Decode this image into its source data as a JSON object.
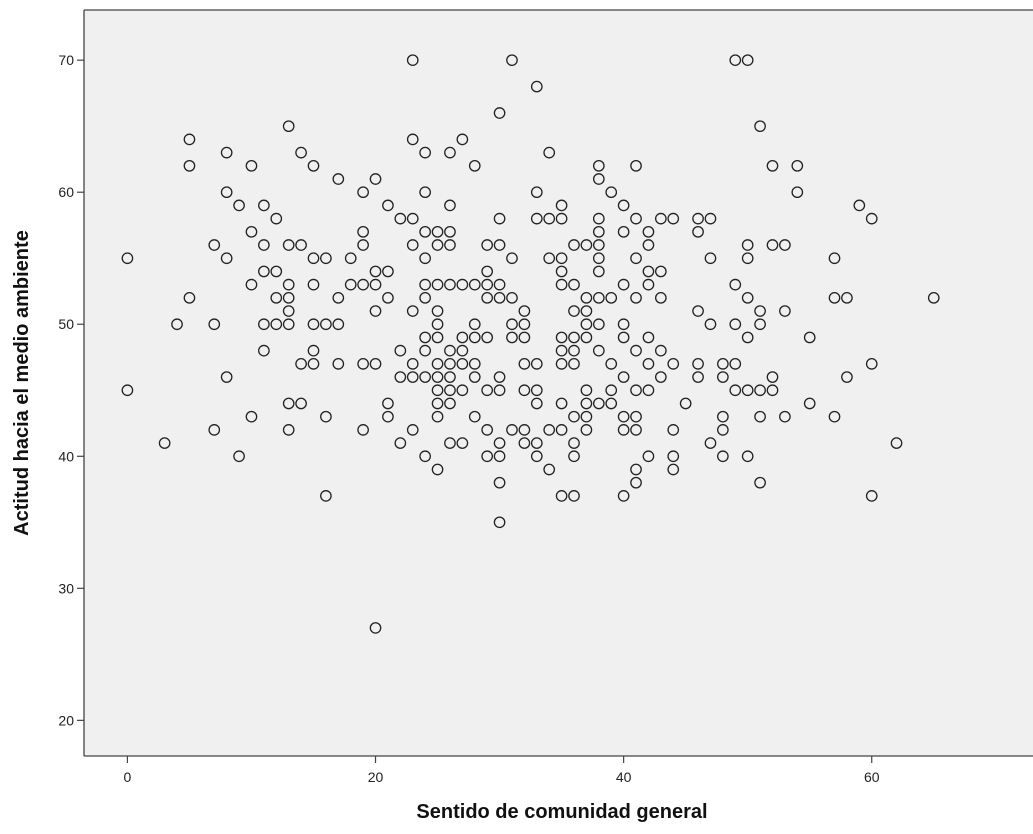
{
  "chart_data": {
    "type": "scatter",
    "title": "",
    "xlabel": "Sentido de comunidad general",
    "ylabel": "Actitud hacia el medio ambiente",
    "xlim": [
      -3.5,
      73
    ],
    "ylim": [
      17.3,
      73.8
    ],
    "xticks": [
      0,
      20,
      40,
      60
    ],
    "yticks": [
      20,
      30,
      40,
      50,
      60,
      70
    ],
    "grid": false,
    "legend": "none",
    "colors": {
      "plot_bg": "#f0f0f0",
      "marker": "#222222",
      "axis": "#444444"
    },
    "points": [
      [
        0,
        55
      ],
      [
        0,
        45
      ],
      [
        3,
        41
      ],
      [
        4,
        50
      ],
      [
        5,
        64
      ],
      [
        5,
        62
      ],
      [
        5,
        52
      ],
      [
        7,
        56
      ],
      [
        7,
        50
      ],
      [
        7,
        42
      ],
      [
        8,
        63
      ],
      [
        8,
        60
      ],
      [
        8,
        55
      ],
      [
        8,
        46
      ],
      [
        9,
        59
      ],
      [
        9,
        40
      ],
      [
        10,
        62
      ],
      [
        10,
        57
      ],
      [
        10,
        53
      ],
      [
        10,
        43
      ],
      [
        11,
        59
      ],
      [
        11,
        56
      ],
      [
        11,
        54
      ],
      [
        11,
        50
      ],
      [
        11,
        48
      ],
      [
        12,
        58
      ],
      [
        12,
        54
      ],
      [
        12,
        52
      ],
      [
        12,
        50
      ],
      [
        13,
        65
      ],
      [
        13,
        56
      ],
      [
        13,
        53
      ],
      [
        13,
        52
      ],
      [
        13,
        51
      ],
      [
        13,
        50
      ],
      [
        13,
        44
      ],
      [
        13,
        42
      ],
      [
        14,
        63
      ],
      [
        14,
        56
      ],
      [
        14,
        47
      ],
      [
        14,
        44
      ],
      [
        15,
        62
      ],
      [
        15,
        55
      ],
      [
        15,
        53
      ],
      [
        15,
        50
      ],
      [
        15,
        48
      ],
      [
        15,
        47
      ],
      [
        16,
        55
      ],
      [
        16,
        50
      ],
      [
        16,
        43
      ],
      [
        16,
        37
      ],
      [
        17,
        61
      ],
      [
        17,
        52
      ],
      [
        17,
        50
      ],
      [
        17,
        47
      ],
      [
        18,
        55
      ],
      [
        18,
        53
      ],
      [
        19,
        60
      ],
      [
        19,
        57
      ],
      [
        19,
        56
      ],
      [
        19,
        53
      ],
      [
        19,
        47
      ],
      [
        19,
        42
      ],
      [
        20,
        61
      ],
      [
        20,
        54
      ],
      [
        20,
        53
      ],
      [
        20,
        51
      ],
      [
        20,
        47
      ],
      [
        20,
        27
      ],
      [
        21,
        59
      ],
      [
        21,
        54
      ],
      [
        21,
        52
      ],
      [
        21,
        44
      ],
      [
        21,
        43
      ],
      [
        22,
        58
      ],
      [
        22,
        48
      ],
      [
        22,
        46
      ],
      [
        22,
        41
      ],
      [
        23,
        70
      ],
      [
        23,
        64
      ],
      [
        23,
        58
      ],
      [
        23,
        56
      ],
      [
        23,
        51
      ],
      [
        23,
        47
      ],
      [
        23,
        46
      ],
      [
        23,
        42
      ],
      [
        24,
        63
      ],
      [
        24,
        60
      ],
      [
        24,
        57
      ],
      [
        24,
        55
      ],
      [
        24,
        53
      ],
      [
        24,
        52
      ],
      [
        24,
        49
      ],
      [
        24,
        48
      ],
      [
        24,
        46
      ],
      [
        24,
        40
      ],
      [
        25,
        57
      ],
      [
        25,
        56
      ],
      [
        25,
        53
      ],
      [
        25,
        51
      ],
      [
        25,
        50
      ],
      [
        25,
        49
      ],
      [
        25,
        47
      ],
      [
        25,
        46
      ],
      [
        25,
        45
      ],
      [
        25,
        44
      ],
      [
        25,
        43
      ],
      [
        25,
        39
      ],
      [
        26,
        63
      ],
      [
        26,
        59
      ],
      [
        26,
        57
      ],
      [
        26,
        56
      ],
      [
        26,
        53
      ],
      [
        26,
        48
      ],
      [
        26,
        47
      ],
      [
        26,
        46
      ],
      [
        26,
        45
      ],
      [
        26,
        44
      ],
      [
        26,
        41
      ],
      [
        27,
        64
      ],
      [
        27,
        53
      ],
      [
        27,
        49
      ],
      [
        27,
        48
      ],
      [
        27,
        47
      ],
      [
        27,
        45
      ],
      [
        27,
        41
      ],
      [
        28,
        62
      ],
      [
        28,
        53
      ],
      [
        28,
        50
      ],
      [
        28,
        49
      ],
      [
        28,
        47
      ],
      [
        28,
        46
      ],
      [
        28,
        43
      ],
      [
        29,
        56
      ],
      [
        29,
        54
      ],
      [
        29,
        53
      ],
      [
        29,
        52
      ],
      [
        29,
        49
      ],
      [
        29,
        45
      ],
      [
        29,
        42
      ],
      [
        29,
        40
      ],
      [
        30,
        66
      ],
      [
        30,
        58
      ],
      [
        30,
        56
      ],
      [
        30,
        53
      ],
      [
        30,
        52
      ],
      [
        30,
        46
      ],
      [
        30,
        45
      ],
      [
        30,
        41
      ],
      [
        30,
        40
      ],
      [
        30,
        38
      ],
      [
        30,
        35
      ],
      [
        31,
        70
      ],
      [
        31,
        55
      ],
      [
        31,
        52
      ],
      [
        31,
        50
      ],
      [
        31,
        49
      ],
      [
        31,
        42
      ],
      [
        32,
        51
      ],
      [
        32,
        50
      ],
      [
        32,
        49
      ],
      [
        32,
        47
      ],
      [
        32,
        45
      ],
      [
        32,
        42
      ],
      [
        32,
        41
      ],
      [
        33,
        68
      ],
      [
        33,
        60
      ],
      [
        33,
        58
      ],
      [
        33,
        47
      ],
      [
        33,
        45
      ],
      [
        33,
        44
      ],
      [
        33,
        41
      ],
      [
        33,
        40
      ],
      [
        34,
        63
      ],
      [
        34,
        58
      ],
      [
        34,
        55
      ],
      [
        34,
        42
      ],
      [
        34,
        39
      ],
      [
        35,
        59
      ],
      [
        35,
        58
      ],
      [
        35,
        55
      ],
      [
        35,
        54
      ],
      [
        35,
        53
      ],
      [
        35,
        49
      ],
      [
        35,
        48
      ],
      [
        35,
        47
      ],
      [
        35,
        44
      ],
      [
        35,
        42
      ],
      [
        35,
        37
      ],
      [
        36,
        56
      ],
      [
        36,
        53
      ],
      [
        36,
        51
      ],
      [
        36,
        49
      ],
      [
        36,
        48
      ],
      [
        36,
        47
      ],
      [
        36,
        43
      ],
      [
        36,
        41
      ],
      [
        36,
        40
      ],
      [
        36,
        37
      ],
      [
        37,
        56
      ],
      [
        37,
        52
      ],
      [
        37,
        51
      ],
      [
        37,
        50
      ],
      [
        37,
        49
      ],
      [
        37,
        45
      ],
      [
        37,
        44
      ],
      [
        37,
        43
      ],
      [
        37,
        42
      ],
      [
        38,
        62
      ],
      [
        38,
        61
      ],
      [
        38,
        58
      ],
      [
        38,
        57
      ],
      [
        38,
        56
      ],
      [
        38,
        55
      ],
      [
        38,
        54
      ],
      [
        38,
        52
      ],
      [
        38,
        50
      ],
      [
        38,
        48
      ],
      [
        38,
        44
      ],
      [
        39,
        60
      ],
      [
        39,
        52
      ],
      [
        39,
        47
      ],
      [
        39,
        45
      ],
      [
        39,
        44
      ],
      [
        40,
        59
      ],
      [
        40,
        57
      ],
      [
        40,
        53
      ],
      [
        40,
        50
      ],
      [
        40,
        49
      ],
      [
        40,
        46
      ],
      [
        40,
        43
      ],
      [
        40,
        42
      ],
      [
        40,
        37
      ],
      [
        41,
        62
      ],
      [
        41,
        58
      ],
      [
        41,
        55
      ],
      [
        41,
        52
      ],
      [
        41,
        48
      ],
      [
        41,
        45
      ],
      [
        41,
        43
      ],
      [
        41,
        42
      ],
      [
        41,
        39
      ],
      [
        41,
        38
      ],
      [
        42,
        57
      ],
      [
        42,
        56
      ],
      [
        42,
        54
      ],
      [
        42,
        53
      ],
      [
        42,
        49
      ],
      [
        42,
        47
      ],
      [
        42,
        45
      ],
      [
        42,
        40
      ],
      [
        43,
        58
      ],
      [
        43,
        54
      ],
      [
        43,
        52
      ],
      [
        43,
        48
      ],
      [
        43,
        46
      ],
      [
        44,
        58
      ],
      [
        44,
        47
      ],
      [
        44,
        42
      ],
      [
        44,
        40
      ],
      [
        44,
        39
      ],
      [
        45,
        44
      ],
      [
        46,
        58
      ],
      [
        46,
        57
      ],
      [
        46,
        51
      ],
      [
        46,
        47
      ],
      [
        46,
        46
      ],
      [
        47,
        58
      ],
      [
        47,
        55
      ],
      [
        47,
        50
      ],
      [
        47,
        41
      ],
      [
        48,
        47
      ],
      [
        48,
        46
      ],
      [
        48,
        43
      ],
      [
        48,
        42
      ],
      [
        48,
        40
      ],
      [
        49,
        70
      ],
      [
        49,
        53
      ],
      [
        49,
        50
      ],
      [
        49,
        47
      ],
      [
        49,
        45
      ],
      [
        50,
        70
      ],
      [
        50,
        56
      ],
      [
        50,
        55
      ],
      [
        50,
        52
      ],
      [
        50,
        49
      ],
      [
        50,
        45
      ],
      [
        50,
        40
      ],
      [
        51,
        65
      ],
      [
        51,
        51
      ],
      [
        51,
        50
      ],
      [
        51,
        45
      ],
      [
        51,
        43
      ],
      [
        51,
        38
      ],
      [
        52,
        62
      ],
      [
        52,
        56
      ],
      [
        52,
        46
      ],
      [
        52,
        45
      ],
      [
        53,
        56
      ],
      [
        53,
        51
      ],
      [
        53,
        43
      ],
      [
        54,
        62
      ],
      [
        54,
        60
      ],
      [
        55,
        49
      ],
      [
        55,
        44
      ],
      [
        57,
        55
      ],
      [
        57,
        52
      ],
      [
        57,
        43
      ],
      [
        58,
        52
      ],
      [
        58,
        46
      ],
      [
        59,
        59
      ],
      [
        60,
        58
      ],
      [
        60,
        47
      ],
      [
        60,
        37
      ],
      [
        62,
        41
      ],
      [
        65,
        52
      ]
    ]
  }
}
